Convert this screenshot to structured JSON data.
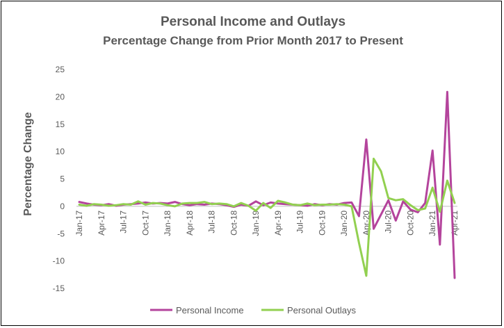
{
  "chart_data": {
    "type": "line",
    "title": "Personal Income and Outlays",
    "subtitle": "Percentage Change from Prior Month 2017 to Present",
    "xlabel": "",
    "ylabel": "Percentage Change",
    "ylim": [
      -15,
      25
    ],
    "yticks": [
      -15,
      -10,
      -5,
      0,
      5,
      10,
      15,
      20,
      25
    ],
    "grid": false,
    "legend_position": "bottom",
    "x": [
      "Jan-17",
      "Feb-17",
      "Mar-17",
      "Apr-17",
      "May-17",
      "Jun-17",
      "Jul-17",
      "Aug-17",
      "Sep-17",
      "Oct-17",
      "Nov-17",
      "Dec-17",
      "Jan-18",
      "Feb-18",
      "Mar-18",
      "Apr-18",
      "May-18",
      "Jun-18",
      "Jul-18",
      "Aug-18",
      "Sep-18",
      "Oct-18",
      "Nov-18",
      "Dec-18",
      "Jan-19",
      "Feb-19",
      "Mar-19",
      "Apr-19",
      "May-19",
      "Jun-19",
      "Jul-19",
      "Aug-19",
      "Sep-19",
      "Oct-19",
      "Nov-19",
      "Dec-19",
      "Jan-20",
      "Feb-20",
      "Mar-20",
      "Apr-20",
      "May-20",
      "Jun-20",
      "Jul-20",
      "Aug-20",
      "Sep-20",
      "Oct-20",
      "Nov-20",
      "Dec-20",
      "Jan-21",
      "Feb-21",
      "Mar-21",
      "Apr-21"
    ],
    "tick_labels": [
      "Jan-17",
      "Apr-17",
      "Jul-17",
      "Oct-17",
      "Jan-18",
      "Apr-18",
      "Jul-18",
      "Oct-18",
      "Jan-19",
      "Apr-19",
      "Jul-19",
      "Oct-19",
      "Jan-20",
      "Apr-20",
      "Jul-20",
      "Oct-20",
      "Jan-21",
      "Apr-21"
    ],
    "series": [
      {
        "name": "Personal Income",
        "color": "#B4449C",
        "values": [
          0.8,
          0.5,
          0.3,
          0.2,
          0.4,
          0.1,
          0.3,
          0.4,
          0.5,
          0.7,
          0.5,
          0.6,
          0.5,
          0.8,
          0.4,
          0.2,
          0.4,
          0.3,
          0.5,
          0.4,
          0.2,
          -0.1,
          0.3,
          0.1,
          0.9,
          0.2,
          0.7,
          0.5,
          0.4,
          0.3,
          0.2,
          0.1,
          0.4,
          0.2,
          0.4,
          0.3,
          0.6,
          0.7,
          -1.8,
          12.2,
          -4.1,
          -1.5,
          1.1,
          -2.6,
          0.9,
          -0.6,
          -1.1,
          0.6,
          10.2,
          -7.0,
          20.9,
          -13.1
        ]
      },
      {
        "name": "Personal Outlays",
        "color": "#92D050",
        "values": [
          0.3,
          0.1,
          0.4,
          0.3,
          0.1,
          0.2,
          0.4,
          0.3,
          0.9,
          0.3,
          0.6,
          0.5,
          0.2,
          0.0,
          0.5,
          0.6,
          0.6,
          0.8,
          0.4,
          0.5,
          0.4,
          0.0,
          0.6,
          0.1,
          -0.8,
          0.6,
          -0.3,
          1.0,
          0.7,
          0.3,
          0.2,
          0.5,
          0.2,
          0.3,
          0.3,
          0.4,
          0.3,
          0.0,
          -6.7,
          -12.7,
          8.7,
          6.4,
          1.5,
          1.1,
          1.3,
          0.2,
          -0.7,
          -0.4,
          3.4,
          -1.0,
          4.7,
          0.6
        ]
      }
    ]
  }
}
